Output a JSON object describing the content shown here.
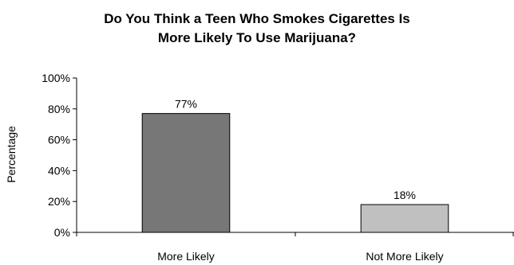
{
  "chart_data": {
    "type": "bar",
    "title_lines": [
      "Do You Think a Teen Who Smokes Cigarettes Is",
      "More Likely To Use Marijuana?"
    ],
    "categories": [
      "More Likely",
      "Not More Likely"
    ],
    "values": [
      77,
      18
    ],
    "data_labels": [
      "77%",
      "18%"
    ],
    "ylabel": "Percentage",
    "xlabel": "",
    "ylim": [
      0,
      100
    ],
    "yticks": [
      0,
      20,
      40,
      60,
      80,
      100
    ],
    "ytick_labels": [
      "0%",
      "20%",
      "40%",
      "60%",
      "80%",
      "100%"
    ],
    "grid": false,
    "legend": "none",
    "bar_colors": [
      "#777777",
      "#c0c0c0"
    ],
    "bar_edge_color": "#000000"
  }
}
